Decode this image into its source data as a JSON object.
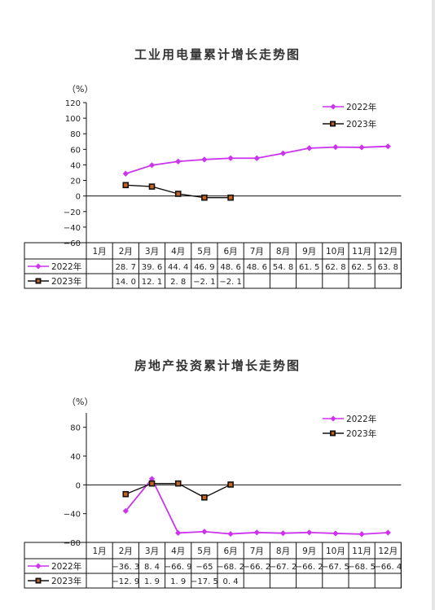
{
  "chart_data": [
    {
      "type": "line",
      "title": "工业用电量累计增长走势图",
      "ylabel": "（%）",
      "ylim": [
        -60,
        120
      ],
      "yticks": [
        -60,
        -40,
        -20,
        0,
        20,
        40,
        60,
        80,
        100,
        120
      ],
      "categories": [
        "1月",
        "2月",
        "3月",
        "4月",
        "5月",
        "6月",
        "7月",
        "8月",
        "9月",
        "10月",
        "11月",
        "12月"
      ],
      "legend_position": "top-right",
      "series": [
        {
          "name": "2022年",
          "color": "#cc33ee",
          "marker": "diamond",
          "values": [
            null,
            28.7,
            39.6,
            44.4,
            46.9,
            48.6,
            48.6,
            54.8,
            61.5,
            62.8,
            62.5,
            63.8
          ],
          "labels": [
            "",
            "28. 7",
            "39. 6",
            "44. 4",
            "46. 9",
            "48. 6",
            "48. 6",
            "54. 8",
            "61. 5",
            "62. 8",
            "62. 5",
            "63. 8"
          ]
        },
        {
          "name": "2023年",
          "color": "#111111",
          "marker": "square",
          "values": [
            null,
            14.0,
            12.1,
            2.8,
            -2.1,
            -2.1,
            null,
            null,
            null,
            null,
            null,
            null
          ],
          "labels": [
            "",
            "14. 0",
            "12. 1",
            "2. 8",
            "−2. 1",
            "−2. 1",
            "",
            "",
            "",
            "",
            "",
            ""
          ]
        }
      ]
    },
    {
      "type": "line",
      "title": "房地产投资累计增长走势图",
      "ylabel": "（%）",
      "ylim": [
        -80,
        100
      ],
      "yticks": [
        -80,
        -40,
        0,
        40,
        80
      ],
      "categories": [
        "1月",
        "2月",
        "3月",
        "4月",
        "5月",
        "6月",
        "7月",
        "8月",
        "9月",
        "10月",
        "11月",
        "12月"
      ],
      "legend_position": "top-right",
      "series": [
        {
          "name": "2022年",
          "color": "#cc33ee",
          "marker": "diamond",
          "values": [
            null,
            -36.3,
            8.4,
            -66.9,
            -65,
            -68.2,
            -66.2,
            -67.2,
            -66.2,
            -67.5,
            -68.5,
            -66.4
          ],
          "labels": [
            "",
            "−36. 3",
            "8. 4",
            "−66. 9",
            "−65",
            "−68. 2",
            "−66. 2",
            "−67. 2",
            "−66. 2",
            "−67. 5",
            "−68. 5",
            "−66. 4"
          ]
        },
        {
          "name": "2023年",
          "color": "#111111",
          "marker": "square",
          "values": [
            null,
            -12.9,
            1.9,
            1.9,
            -17.5,
            0.4,
            null,
            null,
            null,
            null,
            null,
            null
          ],
          "labels": [
            "",
            "−12. 9",
            "1. 9",
            "1. 9",
            "−17. 5",
            "0. 4",
            "",
            "",
            "",
            "",
            "",
            ""
          ]
        }
      ]
    }
  ]
}
